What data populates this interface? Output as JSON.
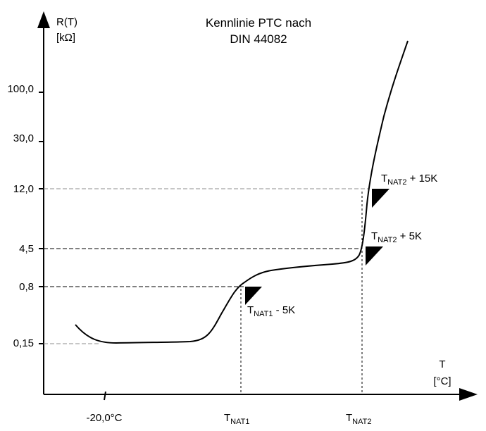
{
  "title": {
    "line1": "Kennlinie PTC nach",
    "line2": "DIN 44082"
  },
  "y_axis": {
    "label": "R(T)",
    "unit": "[kΩ]",
    "ticks": [
      "100,0",
      "30,0",
      "12,0",
      "4,5",
      "0,8",
      "0,15"
    ]
  },
  "x_axis": {
    "label": "T",
    "unit": "[°C]",
    "ticks": {
      "minus20": "-20,0°C",
      "tnat1_main": "T",
      "tnat1_sub": "NAT1",
      "tnat2_main": "T",
      "tnat2_sub": "NAT2"
    }
  },
  "annotations": {
    "tnat1_minus5": {
      "main": "T",
      "sub": "NAT1",
      "suffix": " - 5K"
    },
    "tnat2_plus5": {
      "main": "T",
      "sub": "NAT2",
      "suffix": " + 5K"
    },
    "tnat2_plus15": {
      "main": "T",
      "sub": "NAT2",
      "suffix": " + 15K"
    }
  },
  "colors": {
    "curve": "#000000",
    "axis": "#000000",
    "guide_dark": "#000000",
    "guide_light": "#8c8c8c"
  }
}
